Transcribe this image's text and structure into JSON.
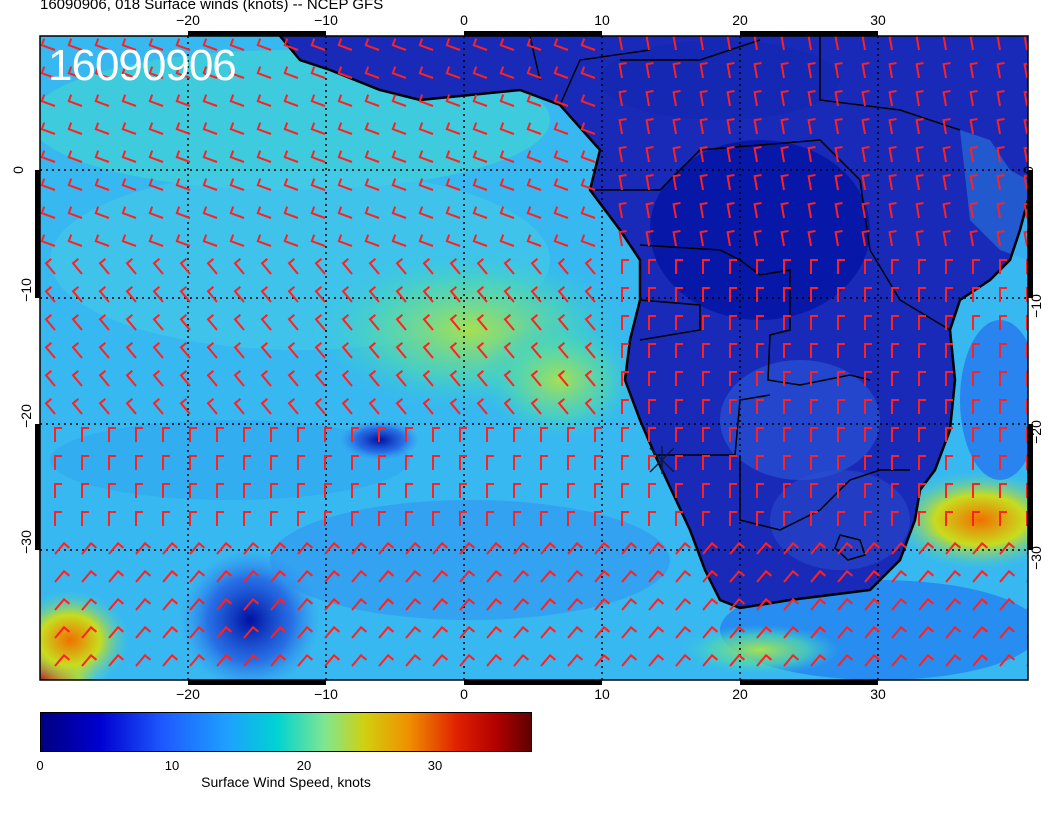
{
  "title": "16090906, 018 Surface winds (knots) -- NCEP GFS",
  "stamp": "16090906",
  "axes": {
    "lon_ticks": [
      "−20",
      "−10",
      "0",
      "10",
      "20",
      "30"
    ],
    "lat_ticks": [
      "0",
      "−10",
      "−20",
      "−30"
    ],
    "lon_values": [
      -20,
      -10,
      0,
      10,
      20,
      30
    ],
    "lat_values": [
      0,
      -10,
      -20,
      -30
    ],
    "lon_range": [
      -31,
      41
    ],
    "lat_range": [
      -40,
      10
    ]
  },
  "colorbar": {
    "label": "Surface Wind Speed, knots",
    "ticks": [
      "0",
      "10",
      "20",
      "30"
    ],
    "tick_values": [
      0,
      10,
      20,
      30
    ],
    "range": [
      0,
      37
    ],
    "colors": [
      "#000080",
      "#0000cd",
      "#1e5aff",
      "#1e96ff",
      "#00d2d2",
      "#6ee6a0",
      "#c8dc1e",
      "#f0a000",
      "#e63200",
      "#c80000",
      "#780000"
    ]
  },
  "colors": {
    "barb": "#ff2020",
    "coast": "#000000",
    "grid": "#000000"
  }
}
